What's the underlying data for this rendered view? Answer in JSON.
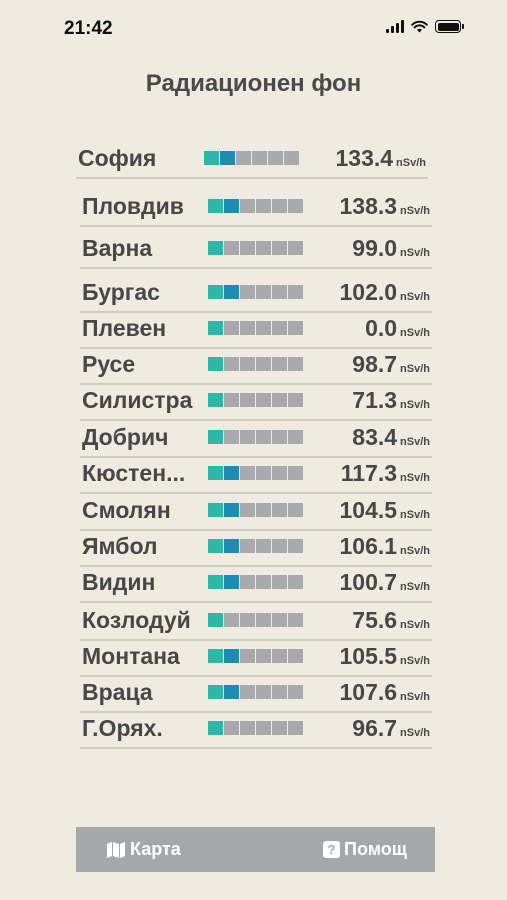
{
  "status_bar": {
    "time": "21:42"
  },
  "title": "Радиационен фон",
  "unit": "nSv/h",
  "cities": [
    {
      "name": "София",
      "value": "133.4",
      "level": 2
    },
    {
      "name": "Пловдив",
      "value": "138.3",
      "level": 2
    },
    {
      "name": "Варна",
      "value": "99.0",
      "level": 1
    },
    {
      "name": "Бургас",
      "value": "102.0",
      "level": 2
    },
    {
      "name": "Плевен",
      "value": "0.0",
      "level": 1
    },
    {
      "name": "Русе",
      "value": "98.7",
      "level": 1
    },
    {
      "name": "Силистра",
      "value": "71.3",
      "level": 1
    },
    {
      "name": "Добрич",
      "value": "83.4",
      "level": 1
    },
    {
      "name": "Кюстен...",
      "value": "117.3",
      "level": 2
    },
    {
      "name": "Смолян",
      "value": "104.5",
      "level": 2
    },
    {
      "name": "Ямбол",
      "value": "106.1",
      "level": 2
    },
    {
      "name": "Видин",
      "value": "100.7",
      "level": 2
    },
    {
      "name": "Козлодуй",
      "value": "75.6",
      "level": 1
    },
    {
      "name": "Монтана",
      "value": "105.5",
      "level": 2
    },
    {
      "name": "Враца",
      "value": "107.6",
      "level": 2
    },
    {
      "name": "Г.Орях.",
      "value": "96.7",
      "level": 1
    }
  ],
  "level_scale_max": 6,
  "colors": {
    "level1": "#2eb6a6",
    "level2": "#1e8bb0",
    "inactive": "#a9aaad",
    "background": "#efebe0",
    "bottom_bar": "#a6a7aa"
  },
  "bottom_nav": {
    "map_label": "Карта",
    "map_icon": "map-icon",
    "help_label": "Помощ",
    "help_icon": "help-icon"
  }
}
